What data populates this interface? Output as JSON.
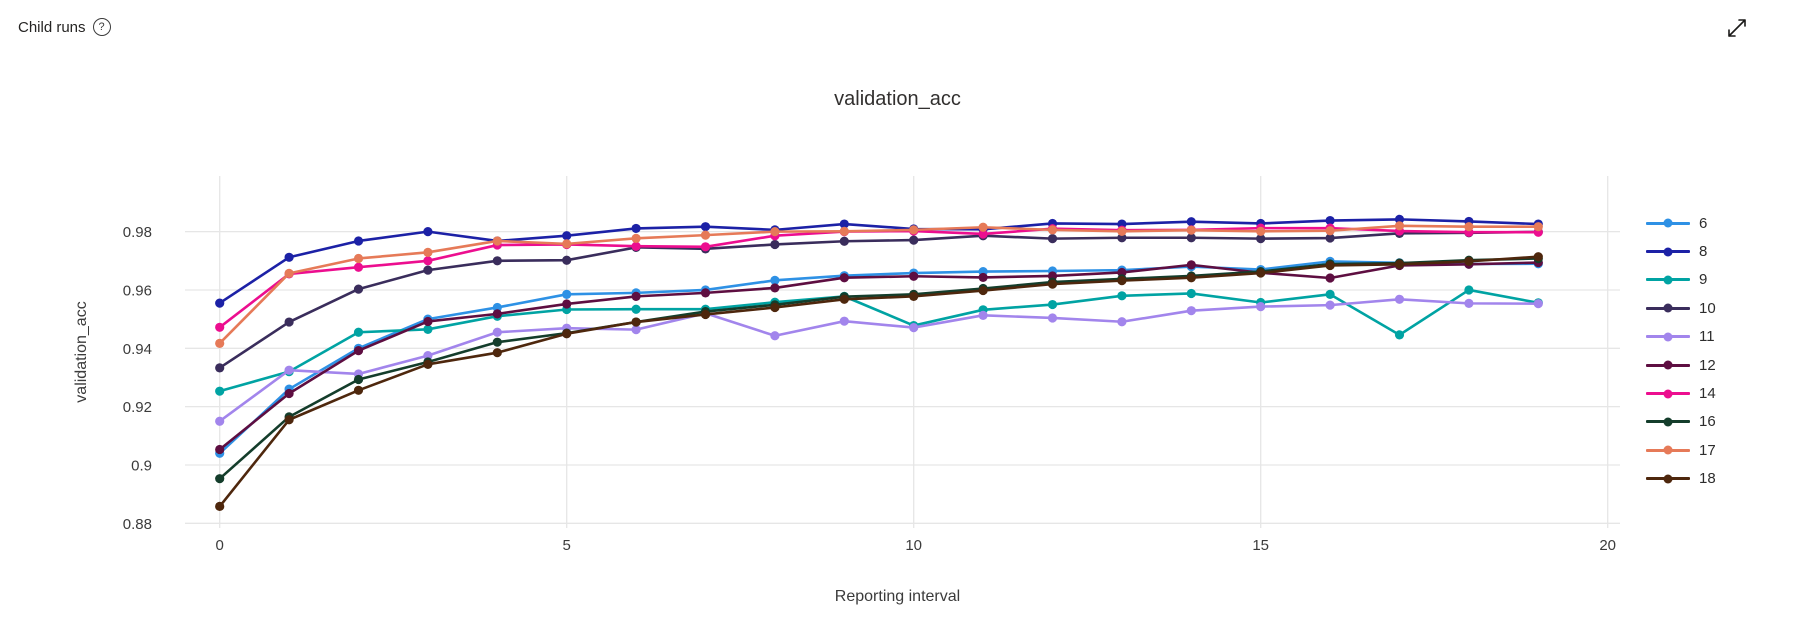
{
  "header": {
    "title": "Child runs",
    "help_icon_glyph": "?",
    "expand_tooltip": "expand"
  },
  "chart_data": {
    "type": "line",
    "title": "validation_acc",
    "xlabel": "Reporting interval",
    "ylabel": "validation_acc",
    "grid": true,
    "legend_position": "right",
    "xlim": [
      -0.5,
      20.2
    ],
    "ylim": [
      0.878,
      0.9995
    ],
    "x_ticks": [
      0,
      5,
      10,
      15,
      20
    ],
    "x_tick_labels": [
      "0",
      "5",
      "10",
      "15",
      "20"
    ],
    "y_ticks": [
      0.88,
      0.9,
      0.92,
      0.94,
      0.96,
      0.98
    ],
    "y_tick_labels": [
      "0.88",
      "0.9",
      "0.92",
      "0.94",
      "0.96",
      "0.98"
    ],
    "x": [
      0,
      1,
      2,
      3,
      4,
      5,
      6,
      7,
      8,
      9,
      10,
      11,
      12,
      13,
      14,
      15,
      16,
      17,
      18,
      19
    ],
    "series": [
      {
        "name": "6",
        "color": "#2E91E5",
        "values": [
          0.904,
          0.926,
          0.94,
          0.95,
          0.954,
          0.9585,
          0.959,
          0.96,
          0.9633,
          0.9649,
          0.9658,
          0.9663,
          0.9665,
          0.9668,
          0.968,
          0.967,
          0.9698,
          0.9693,
          0.9689,
          0.969
        ]
      },
      {
        "name": "8",
        "color": "#1C21A6",
        "values": [
          0.9555,
          0.9712,
          0.9768,
          0.98,
          0.9768,
          0.9786,
          0.9811,
          0.9817,
          0.9806,
          0.9826,
          0.9809,
          0.9808,
          0.9828,
          0.9826,
          0.9834,
          0.9828,
          0.9838,
          0.9842,
          0.9835,
          0.9826
        ]
      },
      {
        "name": "9",
        "color": "#00A3A3",
        "values": [
          0.9253,
          0.932,
          0.9455,
          0.9465,
          0.951,
          0.9533,
          0.9534,
          0.9534,
          0.9558,
          0.9578,
          0.9478,
          0.9532,
          0.955,
          0.958,
          0.9588,
          0.9557,
          0.9585,
          0.9446,
          0.96,
          0.9556
        ]
      },
      {
        "name": "10",
        "color": "#3A2D5C",
        "values": [
          0.9333,
          0.949,
          0.9603,
          0.9668,
          0.97,
          0.9702,
          0.9746,
          0.9741,
          0.9756,
          0.9767,
          0.9771,
          0.9786,
          0.9776,
          0.9779,
          0.9779,
          0.9776,
          0.9778,
          0.9794,
          0.9796,
          0.9799
        ]
      },
      {
        "name": "11",
        "color": "#A285EC",
        "values": [
          0.915,
          0.9325,
          0.9312,
          0.9375,
          0.9455,
          0.9469,
          0.9464,
          0.952,
          0.9443,
          0.9493,
          0.9471,
          0.9513,
          0.9504,
          0.9491,
          0.9529,
          0.9543,
          0.9548,
          0.9568,
          0.9554,
          0.9553
        ]
      },
      {
        "name": "12",
        "color": "#5E0E41",
        "values": [
          0.9053,
          0.9245,
          0.9392,
          0.9492,
          0.9518,
          0.9552,
          0.9578,
          0.959,
          0.9607,
          0.9642,
          0.9647,
          0.9643,
          0.9648,
          0.966,
          0.9686,
          0.9659,
          0.9641,
          0.9684,
          0.9688,
          0.9694
        ]
      },
      {
        "name": "14",
        "color": "#EC0E8F",
        "values": [
          0.9472,
          0.9655,
          0.9678,
          0.97,
          0.9754,
          0.9756,
          0.975,
          0.9748,
          0.9786,
          0.98,
          0.9802,
          0.9792,
          0.981,
          0.9805,
          0.9806,
          0.9812,
          0.9812,
          0.9802,
          0.9798,
          0.9798
        ]
      },
      {
        "name": "16",
        "color": "#143D2B",
        "values": [
          0.8953,
          0.9165,
          0.9293,
          0.9353,
          0.9421,
          0.9452,
          0.949,
          0.9526,
          0.9549,
          0.9577,
          0.9585,
          0.9605,
          0.9627,
          0.9638,
          0.9648,
          0.9663,
          0.9689,
          0.9692,
          0.9702,
          0.9708
        ]
      },
      {
        "name": "17",
        "color": "#E67A58",
        "values": [
          0.9417,
          0.9657,
          0.9708,
          0.9729,
          0.9768,
          0.9758,
          0.9777,
          0.9788,
          0.98,
          0.9801,
          0.9806,
          0.9815,
          0.9806,
          0.9801,
          0.9805,
          0.9801,
          0.9803,
          0.982,
          0.9817,
          0.9817
        ]
      },
      {
        "name": "18",
        "color": "#4E270D",
        "values": [
          0.8858,
          0.9155,
          0.9256,
          0.9345,
          0.9385,
          0.945,
          0.949,
          0.9516,
          0.954,
          0.9568,
          0.9578,
          0.9598,
          0.962,
          0.9632,
          0.9642,
          0.9658,
          0.9684,
          0.9688,
          0.9698,
          0.9714
        ]
      }
    ],
    "colors": {
      "gridline": "#e6e6e6",
      "tick_text": "#3b3b3b",
      "title_text": "#32302f"
    }
  }
}
